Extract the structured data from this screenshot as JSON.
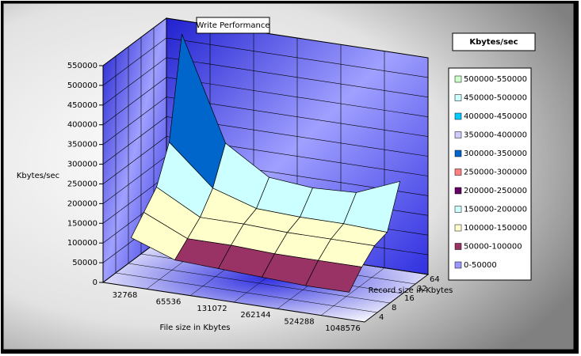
{
  "chart_data": {
    "type": "surface",
    "title": "Write Performance",
    "z_axis_label": "Kbytes/sec",
    "x_axis_label": "File size in Kbytes",
    "y_axis_label": "Record size in Kbytes",
    "legend_title": "Kbytes/sec",
    "x_categories": [
      "32768",
      "65536",
      "131072",
      "262144",
      "524288",
      "1048576"
    ],
    "y_categories": [
      "4",
      "8",
      "16",
      "32",
      "64"
    ],
    "values": [
      [
        110000,
        70000,
        65000,
        60000,
        55000,
        55000
      ],
      [
        150000,
        100000,
        100000,
        95000,
        95000,
        95000
      ],
      [
        190000,
        130000,
        130000,
        125000,
        125000,
        125000
      ],
      [
        280000,
        180000,
        145000,
        140000,
        140000,
        135000
      ],
      [
        530000,
        270000,
        200000,
        190000,
        195000,
        240000
      ]
    ],
    "zlim": [
      0,
      550000
    ],
    "zticks": [
      0,
      50000,
      100000,
      150000,
      200000,
      250000,
      300000,
      350000,
      400000,
      450000,
      500000,
      550000
    ],
    "legend": [
      {
        "label": "500000-550000",
        "color": "#ccffcc"
      },
      {
        "label": "450000-500000",
        "color": "#ccffff"
      },
      {
        "label": "400000-450000",
        "color": "#00ccff"
      },
      {
        "label": "350000-400000",
        "color": "#ccccff"
      },
      {
        "label": "300000-350000",
        "color": "#0066cc"
      },
      {
        "label": "250000-300000",
        "color": "#ff8080"
      },
      {
        "label": "200000-250000",
        "color": "#660066"
      },
      {
        "label": "150000-200000",
        "color": "#ccffff"
      },
      {
        "label": "100000-150000",
        "color": "#ffffcc"
      },
      {
        "label": "50000-100000",
        "color": "#993366"
      },
      {
        "label": "0-50000",
        "color": "#9999ff"
      }
    ]
  }
}
